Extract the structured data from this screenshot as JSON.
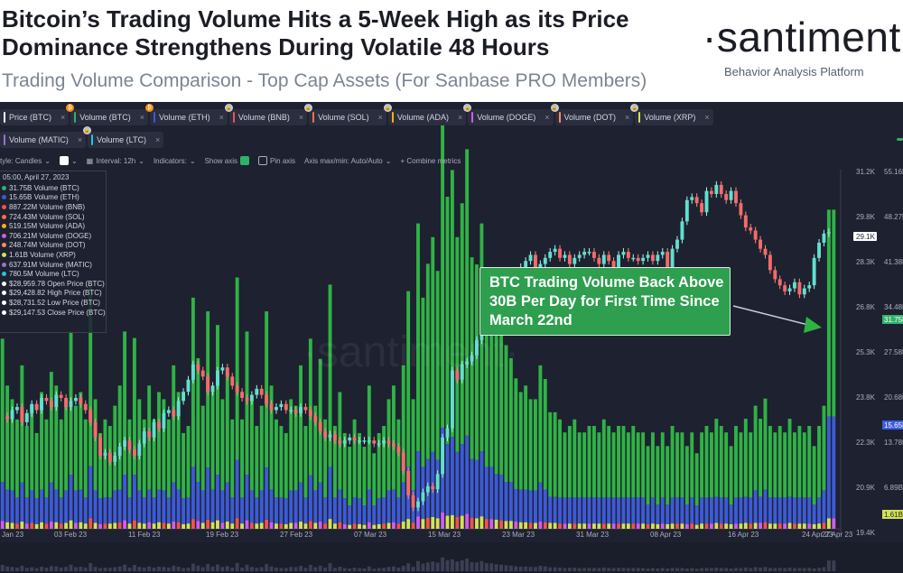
{
  "header": {
    "title": "Bitcoin’s Trading Volume Hits a 5-Week High as its Price Dominance Strengthens During Volatile 48 Hours",
    "subtitle": "Trading Volume Comparison - Top Cap Assets (For Sanbase PRO Members)",
    "brand": "·santiment·",
    "tagline": "Behavior Analysis Platform"
  },
  "metric_chips_row1": [
    {
      "label": "Price (BTC)",
      "color": "#ffffff",
      "badge": ""
    },
    {
      "label": "Volume (BTC)",
      "color": "#30b26a",
      "badge": "B"
    },
    {
      "label": "Volume (ETH)",
      "color": "#3b5bdb",
      "badge": "B"
    },
    {
      "label": "Volume (BNB)",
      "color": "#ef5350",
      "badge": "L"
    },
    {
      "label": "Volume (SOL)",
      "color": "#ff7043",
      "badge": "L"
    },
    {
      "label": "Volume (ADA)",
      "color": "#ffb300",
      "badge": "L"
    },
    {
      "label": "Volume (DOGE)",
      "color": "#d05cf2",
      "badge": "L"
    },
    {
      "label": "Volume (DOT)",
      "color": "#ff8a65",
      "badge": "L"
    },
    {
      "label": "Volume (XRP)",
      "color": "#d4e157",
      "badge": "L"
    }
  ],
  "metric_chips_row2": [
    {
      "label": "Volume (MATIC)",
      "color": "#9575cd",
      "badge": ""
    },
    {
      "label": "Volume (LTC)",
      "color": "#26c6da",
      "badge": "L"
    }
  ],
  "toolbar": {
    "style": "tyle: Candles",
    "interval": "Interval: 12h",
    "indicators": "Indicators:",
    "show_axis": "Show axis",
    "pin_axis": "Pin axis",
    "axis_maxmin": "Axis max/min: Auto/Auto",
    "combine": "+ Combine metrics"
  },
  "infobox": {
    "date": "05:00, April 27, 2023",
    "rows": [
      {
        "text": "31.75B Volume (BTC)",
        "color": "#30b26a"
      },
      {
        "text": "15.65B Volume (ETH)",
        "color": "#3b5bdb"
      },
      {
        "text": "887.22M Volume (BNB)",
        "color": "#ef5350"
      },
      {
        "text": "724.43M Volume (SOL)",
        "color": "#ff7043"
      },
      {
        "text": "519.15M Volume (ADA)",
        "color": "#ffb300"
      },
      {
        "text": "706.21M Volume (DOGE)",
        "color": "#d05cf2"
      },
      {
        "text": "248.74M Volume (DOT)",
        "color": "#ff8a65"
      },
      {
        "text": "1.61B Volume (XRP)",
        "color": "#d4e157"
      },
      {
        "text": "637.91M Volume (MATIC)",
        "color": "#9575cd"
      },
      {
        "text": "780.5M Volume (LTC)",
        "color": "#26c6da"
      },
      {
        "text": "$28,959.78 Open Price (BTC)",
        "color": "#ffffff"
      },
      {
        "text": "$29,428.82 High Price (BTC)",
        "color": "#ffffff"
      },
      {
        "text": "$28,731.52 Low Price (BTC)",
        "color": "#ffffff"
      },
      {
        "text": "$29,147.53 Close Price (BTC)",
        "color": "#ffffff"
      }
    ]
  },
  "annotation": {
    "text": "BTC Trading Volume Back Above 30B Per Day for First Time Since March 22nd"
  },
  "watermark": "·santiment·",
  "chart_data": {
    "type": "bar",
    "title": "",
    "x_tick_labels": [
      "Jan 23",
      "03 Feb 23",
      "11 Feb 23",
      "19 Feb 23",
      "27 Feb 23",
      "07 Mar 23",
      "15 Mar 23",
      "23 Mar 23",
      "31 Mar 23",
      "08 Apr 23",
      "16 Apr 23",
      "24 Apr 23",
      "27 Apr 23"
    ],
    "price_axis_labels": [
      "31.2K",
      "29.8K",
      "28.3K",
      "26.8K",
      "25.3K",
      "23.8K",
      "22.3K",
      "20.9K",
      "19.4K"
    ],
    "price_axis_current": "29.1K",
    "price_ylim": [
      19400,
      31200
    ],
    "volume_axis_labels": [
      "55.16B",
      "48.27B",
      "41.38B",
      "34.48B",
      "27.58B",
      "20.68B",
      "13.78B",
      "6.89B"
    ],
    "volume_axis_markers": [
      {
        "label": "31.75B",
        "color": "#30b26a"
      },
      {
        "label": "15.65B",
        "color": "#3b5bdb"
      },
      {
        "label": "1.61B",
        "color": "#d4e157"
      }
    ],
    "volume_ylim": [
      0,
      55160000000
    ],
    "volume_unit": "billions USD",
    "btc_volume_bn": [
      22,
      16,
      14,
      12,
      18,
      11,
      13,
      10,
      15,
      12,
      17,
      16,
      12,
      14,
      22,
      13,
      15,
      12,
      28,
      14,
      10,
      12,
      11,
      13,
      16,
      22,
      12,
      21,
      14,
      12,
      16,
      12,
      15,
      14,
      12,
      18,
      15,
      10,
      11,
      26,
      19,
      13,
      24,
      16,
      23,
      14,
      17,
      12,
      28,
      12,
      22,
      14,
      11,
      13,
      24,
      16,
      12,
      11,
      10,
      14,
      13,
      18,
      11,
      21,
      13,
      19,
      12,
      28,
      11,
      15,
      10,
      9,
      12,
      10,
      9,
      16,
      8,
      10,
      11,
      14,
      16,
      12,
      18,
      27,
      14,
      35,
      26,
      30,
      33,
      29,
      48,
      38,
      41,
      33,
      37,
      44,
      31,
      30,
      35,
      28,
      27,
      24,
      22,
      21,
      19,
      17,
      15,
      16,
      14,
      14,
      18,
      17,
      13,
      13,
      12,
      10,
      11,
      12,
      10,
      10,
      11,
      11,
      10,
      12,
      11,
      10,
      11,
      11,
      10,
      11,
      10,
      10,
      9,
      10,
      9,
      10,
      9,
      11,
      10,
      10,
      9,
      10,
      8,
      10,
      11,
      10,
      12,
      11,
      10,
      9,
      11,
      10,
      12,
      10,
      13,
      12,
      14,
      11,
      10,
      11,
      10,
      12,
      10,
      11,
      10,
      11,
      9,
      11,
      13,
      31.75,
      31.75
    ],
    "eth_volume_bn": [
      6,
      5,
      5,
      4,
      6,
      4,
      5,
      4,
      5,
      4,
      6,
      5,
      4,
      5,
      7,
      5,
      5,
      4,
      8,
      5,
      4,
      4,
      4,
      5,
      5,
      7,
      4,
      7,
      5,
      4,
      5,
      4,
      5,
      5,
      4,
      6,
      5,
      4,
      4,
      8,
      6,
      5,
      8,
      5,
      7,
      5,
      6,
      4,
      9,
      4,
      7,
      5,
      4,
      5,
      8,
      5,
      4,
      4,
      4,
      5,
      5,
      6,
      4,
      7,
      5,
      6,
      4,
      8,
      4,
      5,
      4,
      3,
      4,
      4,
      3,
      5,
      3,
      4,
      4,
      5,
      5,
      4,
      6,
      8,
      5,
      10,
      8,
      9,
      10,
      9,
      13,
      11,
      12,
      10,
      11,
      12,
      9,
      9,
      10,
      8,
      8,
      7,
      7,
      6,
      6,
      5,
      5,
      5,
      5,
      5,
      6,
      5,
      4,
      4,
      4,
      4,
      4,
      4,
      4,
      4,
      4,
      4,
      4,
      4,
      4,
      4,
      4,
      4,
      4,
      4,
      4,
      4,
      3,
      4,
      3,
      4,
      3,
      4,
      4,
      4,
      3,
      4,
      3,
      4,
      4,
      4,
      4,
      4,
      4,
      3,
      4,
      4,
      4,
      4,
      5,
      4,
      5,
      4,
      4,
      4,
      4,
      4,
      4,
      4,
      4,
      4,
      3,
      4,
      5,
      15.65,
      15.65
    ],
    "alt_volume_bn": [
      1.2,
      1.0,
      0.9,
      0.8,
      1.1,
      0.8,
      0.9,
      0.7,
      1.0,
      0.8,
      1.1,
      1.0,
      0.8,
      0.9,
      1.3,
      0.9,
      1.0,
      0.8,
      1.6,
      0.9,
      0.7,
      0.8,
      0.8,
      0.9,
      1.0,
      1.3,
      0.8,
      1.3,
      0.9,
      0.8,
      1.0,
      0.8,
      1.0,
      0.9,
      0.8,
      1.1,
      1.0,
      0.7,
      0.8,
      1.5,
      1.2,
      0.9,
      1.4,
      1.0,
      1.3,
      0.9,
      1.1,
      0.8,
      1.6,
      0.8,
      1.3,
      0.9,
      0.8,
      0.9,
      1.4,
      1.0,
      0.8,
      0.8,
      0.7,
      0.9,
      0.9,
      1.1,
      0.8,
      1.2,
      0.9,
      1.1,
      0.8,
      1.5,
      0.8,
      1.0,
      0.7,
      0.6,
      0.8,
      0.7,
      0.6,
      1.0,
      0.6,
      0.7,
      0.8,
      0.9,
      1.0,
      0.8,
      1.1,
      1.5,
      0.9,
      1.9,
      1.5,
      1.7,
      1.8,
      1.6,
      2.5,
      2.0,
      2.1,
      1.8,
      2.0,
      2.3,
      1.7,
      1.6,
      1.9,
      1.5,
      1.5,
      1.4,
      1.3,
      1.2,
      1.2,
      1.1,
      1.0,
      1.0,
      0.9,
      0.9,
      1.1,
      1.0,
      0.9,
      0.9,
      0.8,
      0.8,
      0.8,
      0.8,
      0.8,
      0.8,
      0.8,
      0.8,
      0.8,
      0.8,
      0.8,
      0.8,
      0.8,
      0.8,
      0.8,
      0.8,
      0.8,
      0.8,
      0.7,
      0.8,
      0.7,
      0.8,
      0.7,
      0.8,
      0.8,
      0.8,
      0.7,
      0.8,
      0.6,
      0.8,
      0.8,
      0.8,
      0.9,
      0.8,
      0.8,
      0.7,
      0.8,
      0.8,
      0.9,
      0.8,
      0.9,
      0.9,
      1.0,
      0.8,
      0.8,
      0.8,
      0.8,
      0.9,
      0.8,
      0.8,
      0.8,
      0.8,
      0.7,
      0.8,
      0.9,
      1.61,
      1.61
    ],
    "btc_close_price": [
      23100,
      23000,
      23300,
      23400,
      22900,
      23200,
      23500,
      23300,
      23700,
      23600,
      23400,
      23800,
      23700,
      23400,
      23600,
      23700,
      23500,
      23300,
      22900,
      22400,
      21800,
      21900,
      21600,
      21800,
      22100,
      22300,
      22000,
      21800,
      22200,
      22600,
      22400,
      22900,
      22700,
      23200,
      23300,
      23100,
      23600,
      23900,
      24300,
      24800,
      24600,
      24400,
      23900,
      24100,
      24600,
      24700,
      24400,
      24100,
      23900,
      23700,
      23600,
      23800,
      24000,
      23800,
      23500,
      23300,
      23400,
      23500,
      23300,
      23300,
      23200,
      23400,
      23300,
      23100,
      22900,
      22600,
      22400,
      22500,
      22300,
      22200,
      22300,
      22400,
      22300,
      22300,
      22300,
      22300,
      22200,
      22200,
      22300,
      22200,
      22100,
      21900,
      21300,
      20500,
      20100,
      20300,
      20600,
      20800,
      20700,
      21200,
      22400,
      22700,
      24600,
      24300,
      24800,
      24900,
      25100,
      25600,
      26600,
      26800,
      27400,
      27100,
      27600,
      27200,
      27300,
      27500,
      28000,
      28200,
      28400,
      27800,
      28100,
      28300,
      28500,
      28600,
      28300,
      28400,
      28100,
      28300,
      28400,
      28500,
      28500,
      28300,
      28100,
      28400,
      28200,
      28000,
      28400,
      28500,
      28300,
      28300,
      28200,
      28300,
      28400,
      28200,
      28400,
      28500,
      28000,
      28600,
      28900,
      29500,
      30200,
      30300,
      30100,
      29800,
      30500,
      30400,
      30700,
      30400,
      30200,
      30500,
      30100,
      29700,
      29300,
      29200,
      28900,
      28600,
      28400,
      27900,
      27600,
      27400,
      27200,
      27300,
      27500,
      27100,
      27300,
      27400,
      28300,
      28800,
      29100,
      29147.53
    ],
    "btc_candle_open_close_note": "candles drawn from consecutive closes"
  }
}
